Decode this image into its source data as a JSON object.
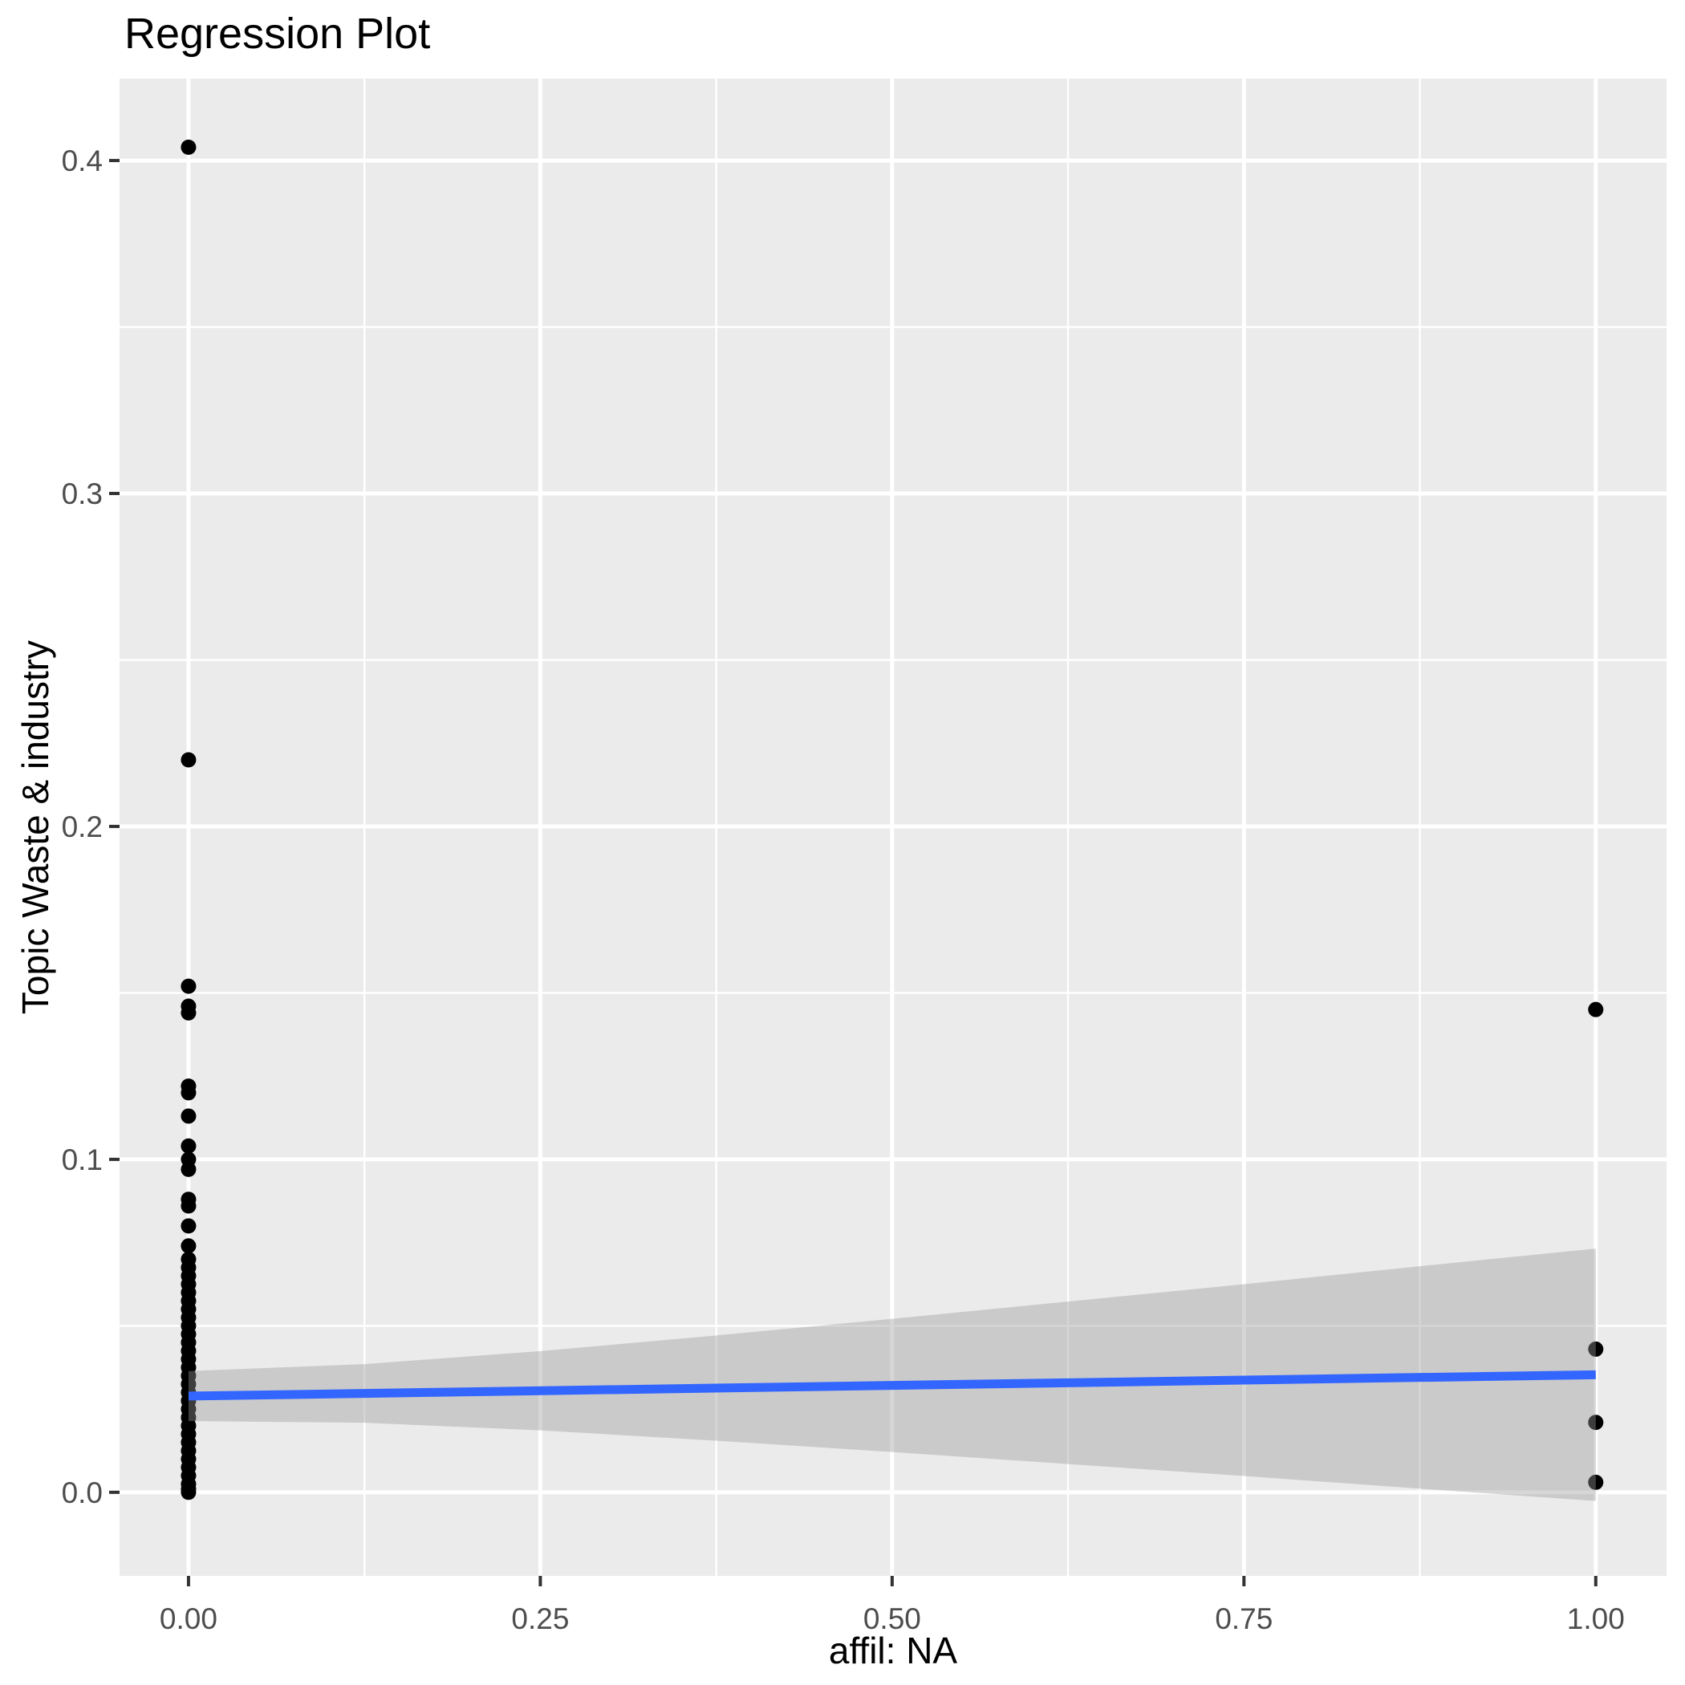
{
  "title": "Regression Plot",
  "axes": {
    "x": {
      "label": "affil: NA"
    },
    "y": {
      "label": "Topic Waste & industry"
    }
  },
  "colors": {
    "panel_background": "#EBEBEB",
    "grid": "#FFFFFF",
    "point": "#000000",
    "smooth_line": "#3366FF",
    "ribbon_fill": "rgba(153,153,153,0.4)",
    "tick_label": "#4D4D4D",
    "tick_mark": "#333333",
    "text": "#000000"
  },
  "chart_data": {
    "type": "scatter",
    "title": "Regression Plot",
    "xlabel": "affil: NA",
    "ylabel": "Topic Waste & industry",
    "xlim": [
      -0.049,
      1.0503
    ],
    "ylim": [
      -0.0251,
      0.4246
    ],
    "grid": "on",
    "legend": "none",
    "x_ticks": {
      "values": [
        0,
        0.25,
        0.5,
        0.75,
        1.0
      ],
      "labels": [
        "0.00",
        "0.25",
        "0.50",
        "0.75",
        "1.00"
      ],
      "minor": [
        0.125,
        0.375,
        0.625,
        0.875
      ]
    },
    "y_ticks": {
      "values": [
        0,
        0.1,
        0.2,
        0.3,
        0.4
      ],
      "labels": [
        "0.0",
        "0.1",
        "0.2",
        "0.3",
        "0.4"
      ],
      "minor": [
        0.05,
        0.15,
        0.25,
        0.35
      ]
    },
    "series": [
      {
        "name": "observations",
        "type": "points",
        "points": [
          [
            0,
            0.404
          ],
          [
            0,
            0.22
          ],
          [
            0,
            0.152
          ],
          [
            0,
            0.146
          ],
          [
            0,
            0.144
          ],
          [
            0,
            0.122
          ],
          [
            0,
            0.12
          ],
          [
            0,
            0.113
          ],
          [
            0,
            0.104
          ],
          [
            0,
            0.1
          ],
          [
            0,
            0.097
          ],
          [
            0,
            0.088
          ],
          [
            0,
            0.086
          ],
          [
            0,
            0.08
          ],
          [
            0,
            0.074
          ],
          [
            0,
            0.07
          ],
          [
            0,
            0.0675
          ],
          [
            0,
            0.065
          ],
          [
            0,
            0.0625
          ],
          [
            0,
            0.06
          ],
          [
            0,
            0.0575
          ],
          [
            0,
            0.055
          ],
          [
            0,
            0.0525
          ],
          [
            0,
            0.05
          ],
          [
            0,
            0.0475
          ],
          [
            0,
            0.045
          ],
          [
            0,
            0.0425
          ],
          [
            0,
            0.04
          ],
          [
            0,
            0.0375
          ],
          [
            0,
            0.035
          ],
          [
            0,
            0.0325
          ],
          [
            0,
            0.03
          ],
          [
            0,
            0.0275
          ],
          [
            0,
            0.025
          ],
          [
            0,
            0.0225
          ],
          [
            0,
            0.02
          ],
          [
            0,
            0.0175
          ],
          [
            0,
            0.015
          ],
          [
            0,
            0.0125
          ],
          [
            0,
            0.01
          ],
          [
            0,
            0.0075
          ],
          [
            0,
            0.005
          ],
          [
            0,
            0.0025
          ],
          [
            0,
            0.001
          ],
          [
            0,
            0.0
          ],
          [
            1,
            0.145
          ],
          [
            1,
            0.043
          ],
          [
            1,
            0.021
          ],
          [
            1,
            0.003
          ]
        ]
      }
    ],
    "regression_line": {
      "x": [
        0,
        1
      ],
      "y": [
        0.0289,
        0.0353
      ]
    },
    "confidence_band": {
      "x": [
        0,
        0.125,
        0.25,
        0.375,
        0.5,
        0.625,
        0.75,
        0.875,
        1.0
      ],
      "upper": [
        0.0364,
        0.0385,
        0.0424,
        0.0471,
        0.0521,
        0.0573,
        0.0625,
        0.0679,
        0.0732
      ],
      "lower": [
        0.0214,
        0.0209,
        0.0186,
        0.0155,
        0.0121,
        0.0085,
        0.0049,
        0.0011,
        -0.0026
      ]
    }
  }
}
